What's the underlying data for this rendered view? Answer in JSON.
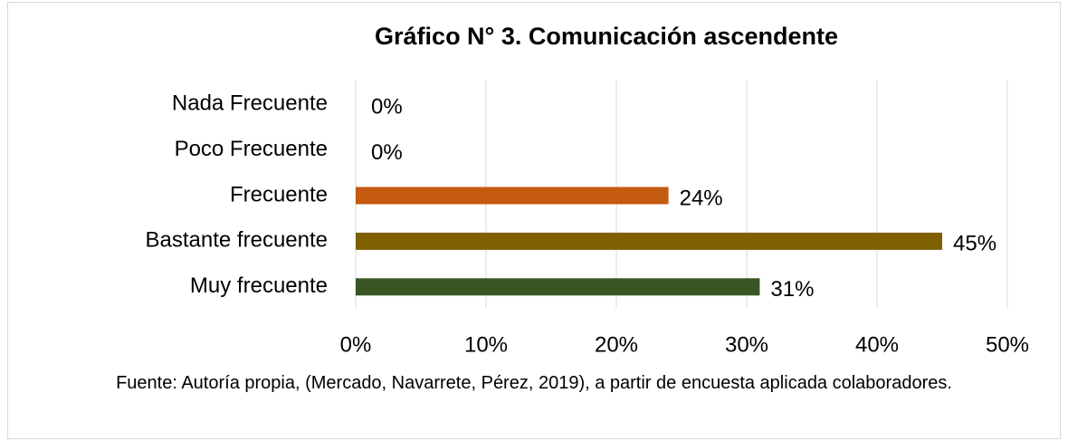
{
  "chart_data": {
    "type": "hbar",
    "title": "Gráfico N°  3. Comunicación ascendente",
    "categories": [
      "Nada Frecuente",
      "Poco Frecuente",
      "Frecuente",
      "Bastante frecuente",
      "Muy frecuente"
    ],
    "values": [
      0,
      0,
      24,
      45,
      31
    ],
    "value_labels": [
      "0%",
      "0%",
      "24%",
      "45%",
      "31%"
    ],
    "colors": [
      "#4472c4",
      "#ed7d31",
      "#c55a11",
      "#7f6000",
      "#375623"
    ],
    "xlim": [
      0,
      50
    ],
    "xticks": [
      {
        "value": 0,
        "label": "0%"
      },
      {
        "value": 10,
        "label": "10%"
      },
      {
        "value": 20,
        "label": "20%"
      },
      {
        "value": 30,
        "label": "30%"
      },
      {
        "value": 40,
        "label": "40%"
      },
      {
        "value": 50,
        "label": "50%"
      }
    ],
    "grid": true,
    "source": "Fuente: Autoría propia, (Mercado, Navarrete, Pérez, 2019), a partir de encuesta aplicada colaboradores."
  }
}
